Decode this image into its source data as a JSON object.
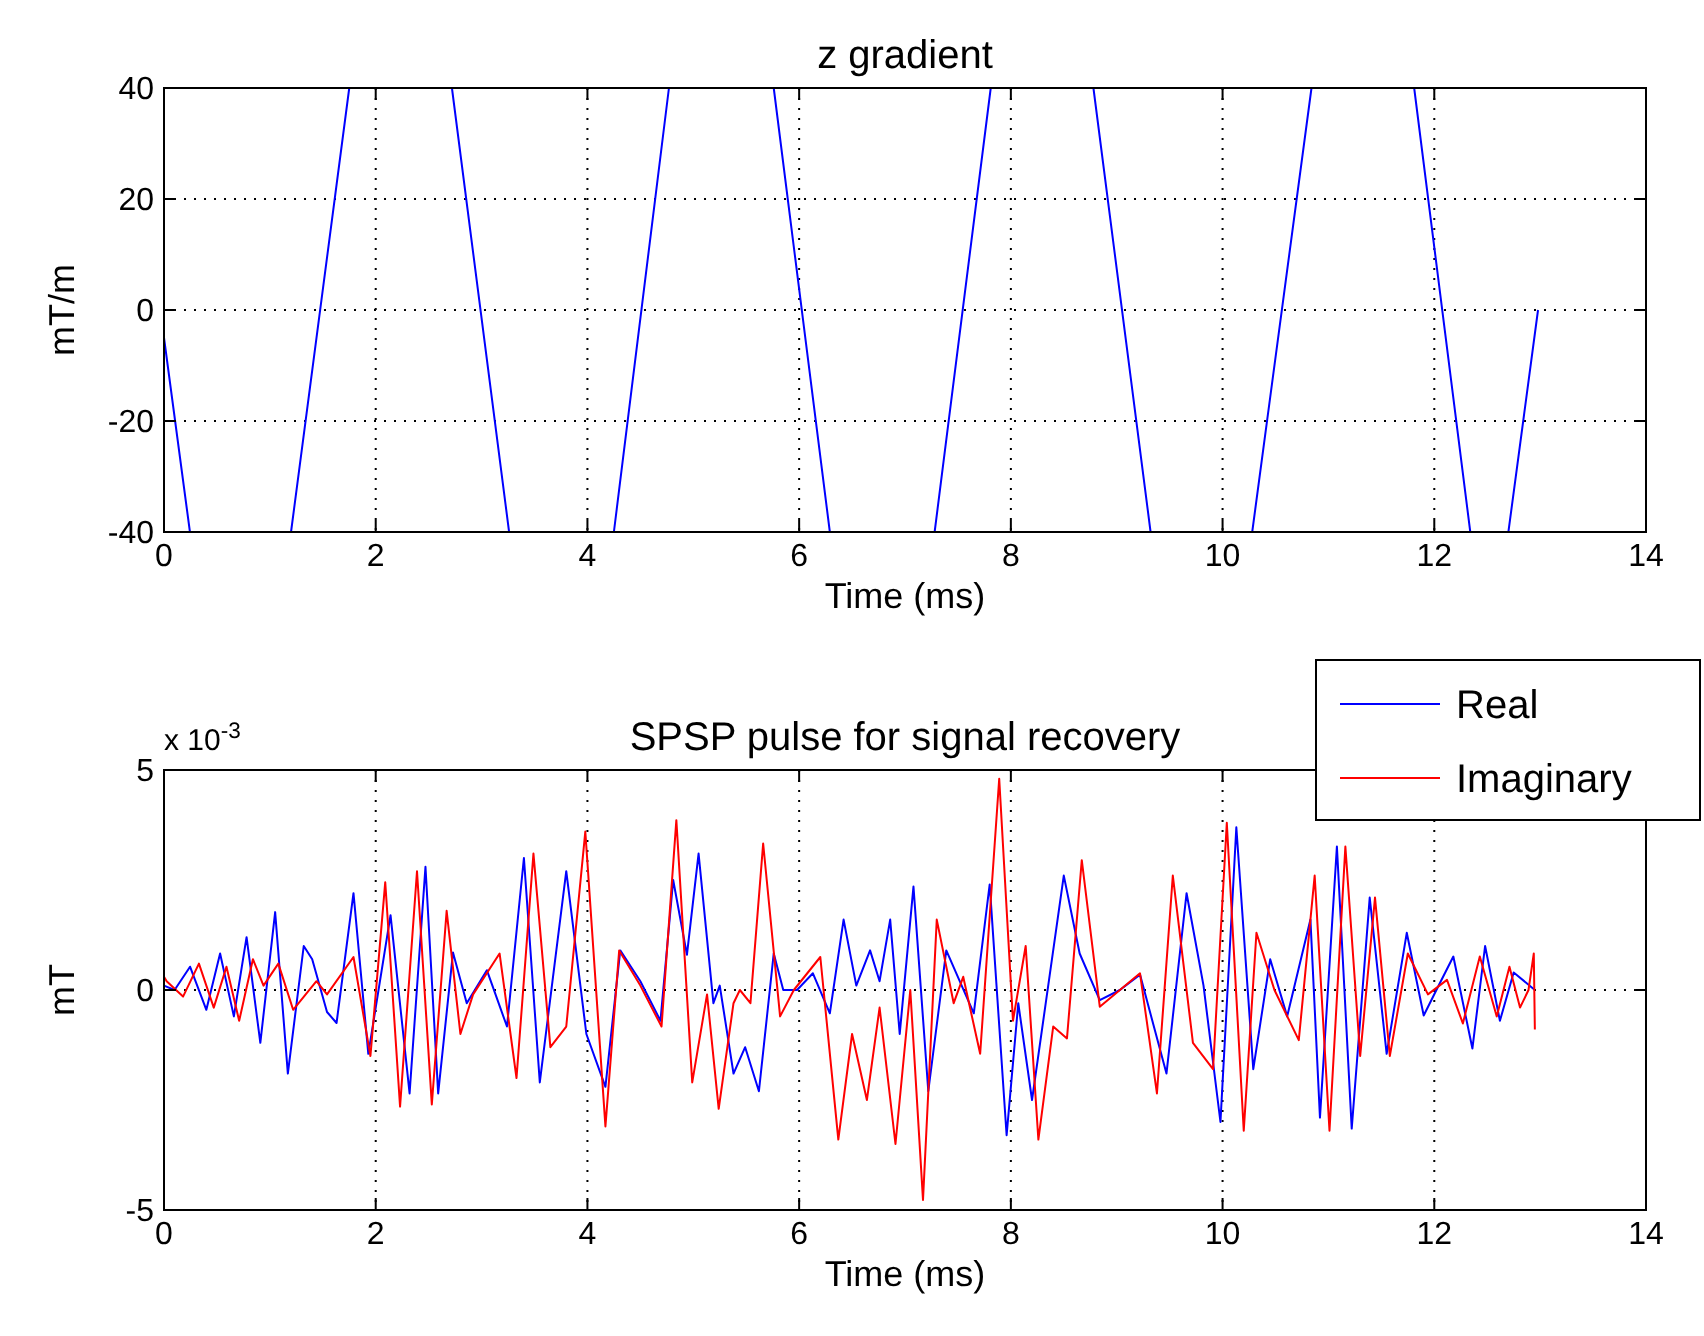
{
  "chart_data": [
    {
      "type": "line",
      "title": "z gradient",
      "xlabel": "Time (ms)",
      "ylabel": "mT/m",
      "xlim": [
        0,
        14
      ],
      "ylim": [
        -40,
        40
      ],
      "xticks": [
        0,
        2,
        4,
        6,
        8,
        10,
        12,
        14
      ],
      "yticks": [
        -40,
        -20,
        0,
        20,
        40
      ],
      "grid": true,
      "legend": false,
      "series": [
        {
          "color": "#0000ff",
          "x": [
            0,
            0.245,
            1.2,
            1.75,
            2.72,
            3.26,
            4.25,
            4.77,
            5.76,
            6.29,
            7.28,
            7.81,
            8.78,
            9.32,
            10.28,
            10.84,
            11.81,
            12.34,
            12.7,
            12.98
          ],
          "values": [
            -5,
            -40,
            -40,
            40,
            40,
            -40,
            -40,
            40,
            40,
            -40,
            -40,
            40,
            40,
            -40,
            -40,
            40,
            40,
            -40,
            -40,
            0
          ]
        }
      ]
    },
    {
      "type": "line",
      "title": "SPSP pulse for signal recovery",
      "xlabel": "Time (ms)",
      "ylabel": "mT",
      "annotations": [
        "x 10$^{-3}$"
      ],
      "xlim": [
        0,
        14
      ],
      "ylim": [
        -5,
        5
      ],
      "xticks": [
        0,
        2,
        4,
        6,
        8,
        10,
        12,
        14
      ],
      "yticks": [
        -5,
        0,
        5
      ],
      "grid": true,
      "legend": "top right",
      "series": [
        {
          "name": "Real",
          "color": "#0000ff",
          "x": [
            0,
            0.1,
            0.246,
            0.4,
            0.53,
            0.66,
            0.78,
            0.91,
            1.05,
            1.17,
            1.32,
            1.4,
            1.54,
            1.63,
            1.79,
            1.93,
            2.14,
            2.32,
            2.47,
            2.59,
            2.73,
            2.86,
            3.05,
            3.24,
            3.4,
            3.55,
            3.8,
            3.99,
            4.17,
            4.31,
            4.5,
            4.69,
            4.81,
            4.94,
            5.05,
            5.19,
            5.25,
            5.38,
            5.49,
            5.62,
            5.76,
            5.85,
            5.98,
            6.13,
            6.29,
            6.42,
            6.54,
            6.67,
            6.76,
            6.86,
            6.95,
            7.08,
            7.22,
            7.39,
            7.65,
            7.8,
            7.96,
            8.07,
            8.2,
            8.5,
            8.65,
            8.84,
            9.03,
            9.22,
            9.47,
            9.66,
            9.82,
            9.98,
            10.13,
            10.29,
            10.45,
            10.61,
            10.83,
            10.92,
            11.08,
            11.22,
            11.39,
            11.55,
            11.74,
            11.9,
            12.02,
            12.18,
            12.36,
            12.48,
            12.62,
            12.75,
            12.95
          ],
          "values": [
            0.1,
            0,
            0.53,
            -0.45,
            0.83,
            -0.6,
            1.2,
            -1.2,
            1.77,
            -1.9,
            1.0,
            0.7,
            -0.5,
            -0.75,
            2.2,
            -1.45,
            1.7,
            -2.35,
            2.8,
            -2.35,
            0.85,
            -0.3,
            0.45,
            -0.83,
            3.0,
            -2.1,
            2.7,
            -1.0,
            -2.2,
            0.9,
            0.2,
            -0.7,
            2.5,
            0.8,
            3.1,
            -0.3,
            0.1,
            -1.9,
            -1.3,
            -2.3,
            0.83,
            0,
            0,
            0.38,
            -0.53,
            1.6,
            0.1,
            0.9,
            0.2,
            1.6,
            -1.0,
            2.35,
            -2.3,
            0.9,
            -0.53,
            2.4,
            -3.3,
            -0.3,
            -2.5,
            2.6,
            0.83,
            -0.23,
            0,
            0.35,
            -1.9,
            2.2,
            0.1,
            -3.0,
            3.7,
            -1.8,
            0.7,
            -0.6,
            1.6,
            -2.9,
            3.26,
            -3.15,
            2.1,
            -1.45,
            1.3,
            -0.58,
            0,
            0.76,
            -1.33,
            1.0,
            -0.7,
            0.4,
            0
          ]
        },
        {
          "name": "Imaginary",
          "color": "#ff0000",
          "x": [
            0,
            0.025,
            0.18,
            0.33,
            0.47,
            0.59,
            0.71,
            0.84,
            0.94,
            1.08,
            1.22,
            1.44,
            1.54,
            1.79,
            1.95,
            2.09,
            2.23,
            2.39,
            2.53,
            2.67,
            2.8,
            2.92,
            3.17,
            3.33,
            3.49,
            3.65,
            3.8,
            3.98,
            4.17,
            4.3,
            4.5,
            4.7,
            4.84,
            4.99,
            5.13,
            5.24,
            5.38,
            5.44,
            5.54,
            5.66,
            5.82,
            5.95,
            6.2,
            6.37,
            6.5,
            6.64,
            6.76,
            6.91,
            7.05,
            7.17,
            7.3,
            7.46,
            7.55,
            7.71,
            7.89,
            8.02,
            8.14,
            8.26,
            8.4,
            8.53,
            8.67,
            8.84,
            9.03,
            9.22,
            9.38,
            9.53,
            9.72,
            9.91,
            10.04,
            10.2,
            10.32,
            10.49,
            10.72,
            10.87,
            11.01,
            11.16,
            11.3,
            11.44,
            11.58,
            11.75,
            11.94,
            12.12,
            12.27,
            12.43,
            12.59,
            12.71,
            12.81,
            12.89,
            12.94,
            12.95
          ],
          "values": [
            0.3,
            0.2,
            -0.15,
            0.6,
            -0.4,
            0.53,
            -0.7,
            0.7,
            0.1,
            0.6,
            -0.45,
            0.2,
            -0.1,
            0.75,
            -1.5,
            2.45,
            -2.65,
            2.7,
            -2.6,
            1.8,
            -1.0,
            -0.1,
            0.83,
            -2.0,
            3.1,
            -1.3,
            -0.83,
            3.6,
            -3.1,
            0.9,
            0.1,
            -0.83,
            3.86,
            -2.1,
            -0.1,
            -2.7,
            -0.3,
            0,
            -0.3,
            3.33,
            -0.6,
            0,
            0.75,
            -3.4,
            -1.0,
            -2.5,
            -0.4,
            -3.5,
            0,
            -4.77,
            1.6,
            -0.3,
            0.3,
            -1.45,
            4.8,
            -0.7,
            1.0,
            -3.4,
            -0.83,
            -1.1,
            2.95,
            -0.38,
            0,
            0.38,
            -2.35,
            2.6,
            -1.2,
            -1.8,
            3.8,
            -3.2,
            1.3,
            0,
            -1.14,
            2.6,
            -3.2,
            3.26,
            -1.5,
            2.1,
            -1.5,
            0.83,
            -0.1,
            0.23,
            -0.76,
            0.76,
            -0.6,
            0.53,
            -0.4,
            0,
            0.83,
            -0.9
          ]
        }
      ]
    }
  ]
}
